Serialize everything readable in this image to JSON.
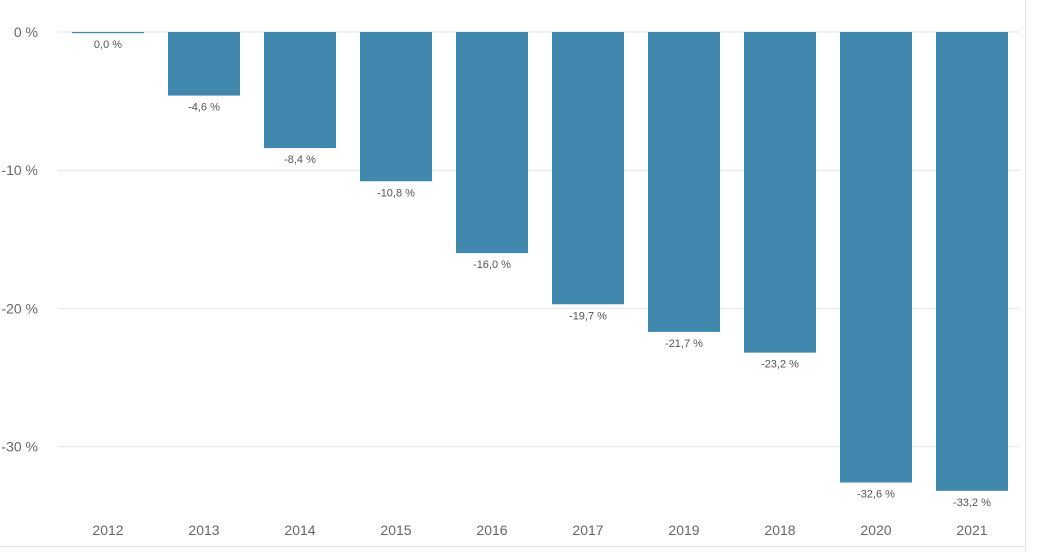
{
  "chart_data": {
    "type": "bar",
    "categories": [
      "2012",
      "2013",
      "2014",
      "2015",
      "2016",
      "2017",
      "2019",
      "2018",
      "2020",
      "2021"
    ],
    "values": [
      0.0,
      -4.6,
      -8.4,
      -10.8,
      -16.0,
      -19.7,
      -21.7,
      -23.2,
      -32.6,
      -33.2
    ],
    "data_labels": [
      "0,0 %",
      "-4,6 %",
      "-8,4 %",
      "-10,8 %",
      "-16,0 %",
      "-19,7 %",
      "-21,7 %",
      "-23,2 %",
      "-32,6 %",
      "-33,2 %"
    ],
    "y_ticks": [
      0,
      -10,
      -20,
      -30
    ],
    "y_tick_labels": [
      "0 %",
      "-10 %",
      "-20 %",
      "-30 %"
    ],
    "ylim": [
      -35.5,
      1.3
    ],
    "grid": true,
    "legend": "none",
    "colors": {
      "bar": "#4088ad",
      "grid": "#e6e6e6",
      "tick_text": "#666666",
      "label_text": "#555555"
    }
  }
}
